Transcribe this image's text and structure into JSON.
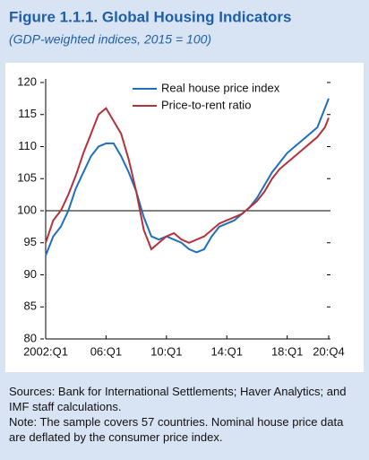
{
  "chart_data": {
    "type": "line",
    "title": "Figure 1.1.1. Global Housing Indicators",
    "subtitle": "(GDP-weighted indices, 2015 = 100)",
    "x": [
      2002,
      2002.5,
      2003,
      2003.5,
      2004,
      2004.5,
      2005,
      2005.5,
      2006,
      2006.5,
      2007,
      2007.5,
      2008,
      2008.5,
      2009,
      2009.5,
      2010,
      2010.5,
      2011,
      2011.5,
      2012,
      2012.5,
      2013,
      2013.5,
      2014,
      2014.5,
      2015,
      2015.5,
      2016,
      2016.5,
      2017,
      2017.5,
      2018,
      2018.5,
      2019,
      2019.5,
      2020,
      2020.5,
      2020.75
    ],
    "series": [
      {
        "name": "Real house price index",
        "color": "#1f6fbf",
        "values": [
          93,
          96,
          97.5,
          100,
          103.5,
          106,
          108.5,
          110,
          110.5,
          110.5,
          108.5,
          106,
          103,
          99,
          96,
          95.5,
          96,
          95.5,
          95,
          94,
          93.5,
          94,
          96,
          97.5,
          98,
          98.5,
          99.5,
          100.5,
          102,
          104,
          106,
          107.5,
          109,
          110,
          111,
          112,
          113,
          116,
          117.5
        ]
      },
      {
        "name": "Price-to-rent ratio",
        "color": "#b5323a",
        "values": [
          95,
          98.5,
          100,
          102.5,
          105.5,
          109,
          112,
          115,
          116,
          114,
          112,
          108,
          103,
          97,
          94,
          95,
          96,
          96.5,
          95.5,
          95,
          95.5,
          96,
          97,
          98,
          98.5,
          99,
          99.5,
          100.5,
          101.5,
          103,
          105,
          106.5,
          107.5,
          108.5,
          109.5,
          110.5,
          111.5,
          113,
          114.5
        ]
      }
    ],
    "xlim": [
      2002,
      2020.75
    ],
    "xticks": [
      {
        "value": 2002,
        "label": "2002:Q1"
      },
      {
        "value": 2006,
        "label": "06:Q1"
      },
      {
        "value": 2010,
        "label": "10:Q1"
      },
      {
        "value": 2014,
        "label": "14:Q1"
      },
      {
        "value": 2018,
        "label": "18:Q1"
      },
      {
        "value": 2020.75,
        "label": "20:Q4"
      }
    ],
    "ylim": [
      80,
      120
    ],
    "yticks": [
      80,
      85,
      90,
      95,
      100,
      105,
      110,
      115,
      120
    ],
    "reference_line": 100,
    "legend": "top",
    "notes": [
      "Sources: Bank for International Settlements; Haver Analytics; and IMF staff calculations.",
      "Note: The sample covers 57 countries. Nominal house price data are deflated by the consumer price index."
    ]
  }
}
